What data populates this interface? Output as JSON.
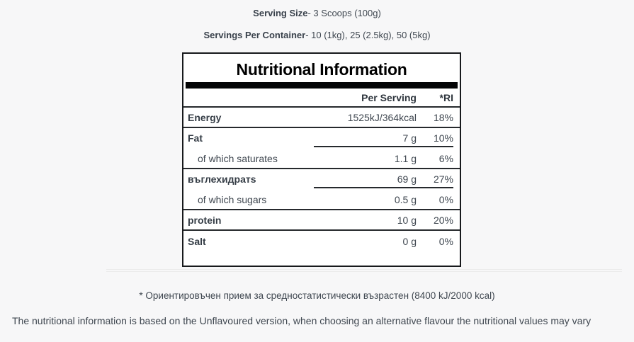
{
  "header": {
    "serving_size_label": "Serving Size",
    "serving_size_value": "- 3 Scoops (100g)",
    "servings_label": "Servings Per Container",
    "servings_value": "- 10 (1kg), 25 (2.5kg), 50 (5kg)"
  },
  "table": {
    "title": "Nutritional Information",
    "col_per_serving": "Per Serving",
    "col_ri": "*RI",
    "rows": [
      {
        "label": "Energy",
        "per_serving": "1525kJ/364kcal",
        "ri": "18%"
      },
      {
        "label": "Fat",
        "per_serving": "7 g",
        "ri": "10%"
      },
      {
        "label": "of which saturates",
        "per_serving": "1.1 g",
        "ri": "6%"
      },
      {
        "label": "въглехидратs",
        "per_serving": "69 g",
        "ri": "27%"
      },
      {
        "label": "of which sugars",
        "per_serving": "0.5 g",
        "ri": "0%"
      },
      {
        "label": "protein",
        "per_serving": "10 g",
        "ri": "20%"
      },
      {
        "label": "Salt",
        "per_serving": "0 g",
        "ri": "0%"
      }
    ]
  },
  "footer": {
    "ri_note": "* Ориентировъчен прием за средностатистически възрастен (8400 kJ/2000 kcal)",
    "disclaimer": "The nutritional information is based on the Unflavoured version, when choosing an alternative flavour the nutritional values may vary"
  },
  "colors": {
    "page_background": "#f7f7f8",
    "table_background": "#ffffff",
    "table_border": "#17191c",
    "divider_dark": "#26292d",
    "separator_bar": "#040506",
    "text": "#3f4750",
    "title": "#000000"
  }
}
